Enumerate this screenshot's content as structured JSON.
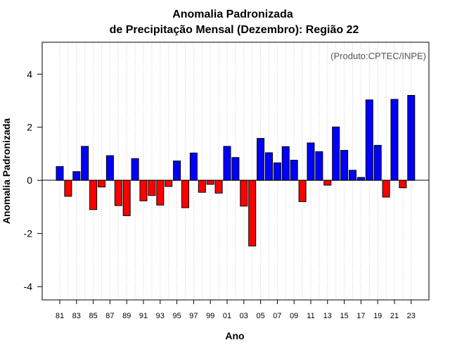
{
  "chart_data": {
    "type": "bar",
    "title": "Anomalia Padronizada",
    "subtitle": "de Precipitação Mensal (Dezembro): Região 22",
    "xlabel": "Ano",
    "ylabel": "Anomalia Padronizada",
    "annotation": "(Produto:CPTEC/INPE)",
    "ylim": [
      -4.5,
      5.2
    ],
    "yticks": [
      -4,
      -2,
      0,
      2,
      4
    ],
    "grid": "vertical dotted",
    "categories": [
      "81",
      "82",
      "83",
      "84",
      "85",
      "86",
      "87",
      "88",
      "89",
      "90",
      "91",
      "92",
      "93",
      "94",
      "95",
      "96",
      "97",
      "98",
      "99",
      "00",
      "01",
      "02",
      "03",
      "04",
      "05",
      "06",
      "07",
      "08",
      "09",
      "10",
      "11",
      "12",
      "13",
      "14",
      "15",
      "16",
      "17",
      "18",
      "19",
      "20",
      "21",
      "22",
      "23"
    ],
    "tick_labels": [
      "81",
      "83",
      "85",
      "87",
      "89",
      "91",
      "93",
      "95",
      "97",
      "99",
      "01",
      "03",
      "05",
      "07",
      "09",
      "11",
      "13",
      "15",
      "17",
      "19",
      "21",
      "23"
    ],
    "values": [
      0.52,
      -0.6,
      0.33,
      1.28,
      -1.1,
      -0.25,
      0.93,
      -0.95,
      -1.33,
      0.82,
      -0.77,
      -0.57,
      -0.93,
      -0.23,
      0.73,
      -1.03,
      1.03,
      -0.45,
      -0.15,
      -0.48,
      1.28,
      0.86,
      -0.97,
      -2.47,
      1.58,
      1.04,
      0.66,
      1.27,
      0.76,
      -0.8,
      1.41,
      1.08,
      -0.18,
      2.01,
      1.13,
      0.38,
      0.11,
      3.03,
      1.32,
      -0.63,
      3.05,
      -0.28,
      3.2
    ],
    "colors": {
      "positive": "#0000ff",
      "negative": "#ff0000"
    }
  }
}
